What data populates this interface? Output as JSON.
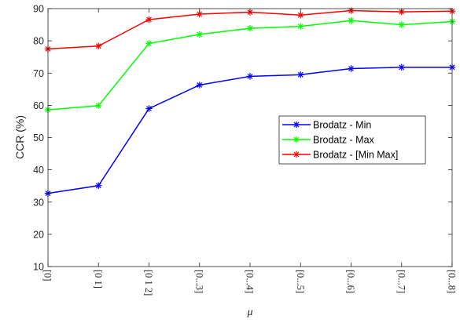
{
  "chart_data": {
    "type": "line",
    "categories": [
      "[0]",
      "[0 1]",
      "[0 1 2]",
      "[0...3]",
      "[0...4]",
      "[0...5]",
      "[0...6]",
      "[0...7]",
      "[0...8]"
    ],
    "xlabel": "μ",
    "ylabel": "CCR (%)",
    "ylim": [
      10,
      90
    ],
    "yticks": [
      10,
      20,
      30,
      40,
      50,
      60,
      70,
      80,
      90
    ],
    "grid": false,
    "legend_position": "center-right",
    "series": [
      {
        "name": "Brodatz - Min",
        "color": "#0000ff",
        "values": [
          32.7,
          35.1,
          59.0,
          66.3,
          69.0,
          69.5,
          71.4,
          71.8,
          71.8
        ]
      },
      {
        "name": "Brodatz - Max",
        "color": "#00ff00",
        "values": [
          58.6,
          59.9,
          79.2,
          82.0,
          83.9,
          84.5,
          86.3,
          85.0,
          86.0
        ]
      },
      {
        "name": "Brodatz - [Min Max]",
        "color": "#ff0000",
        "values": [
          77.5,
          78.4,
          86.6,
          88.3,
          88.9,
          88.0,
          89.4,
          89.0,
          89.2
        ]
      }
    ]
  }
}
